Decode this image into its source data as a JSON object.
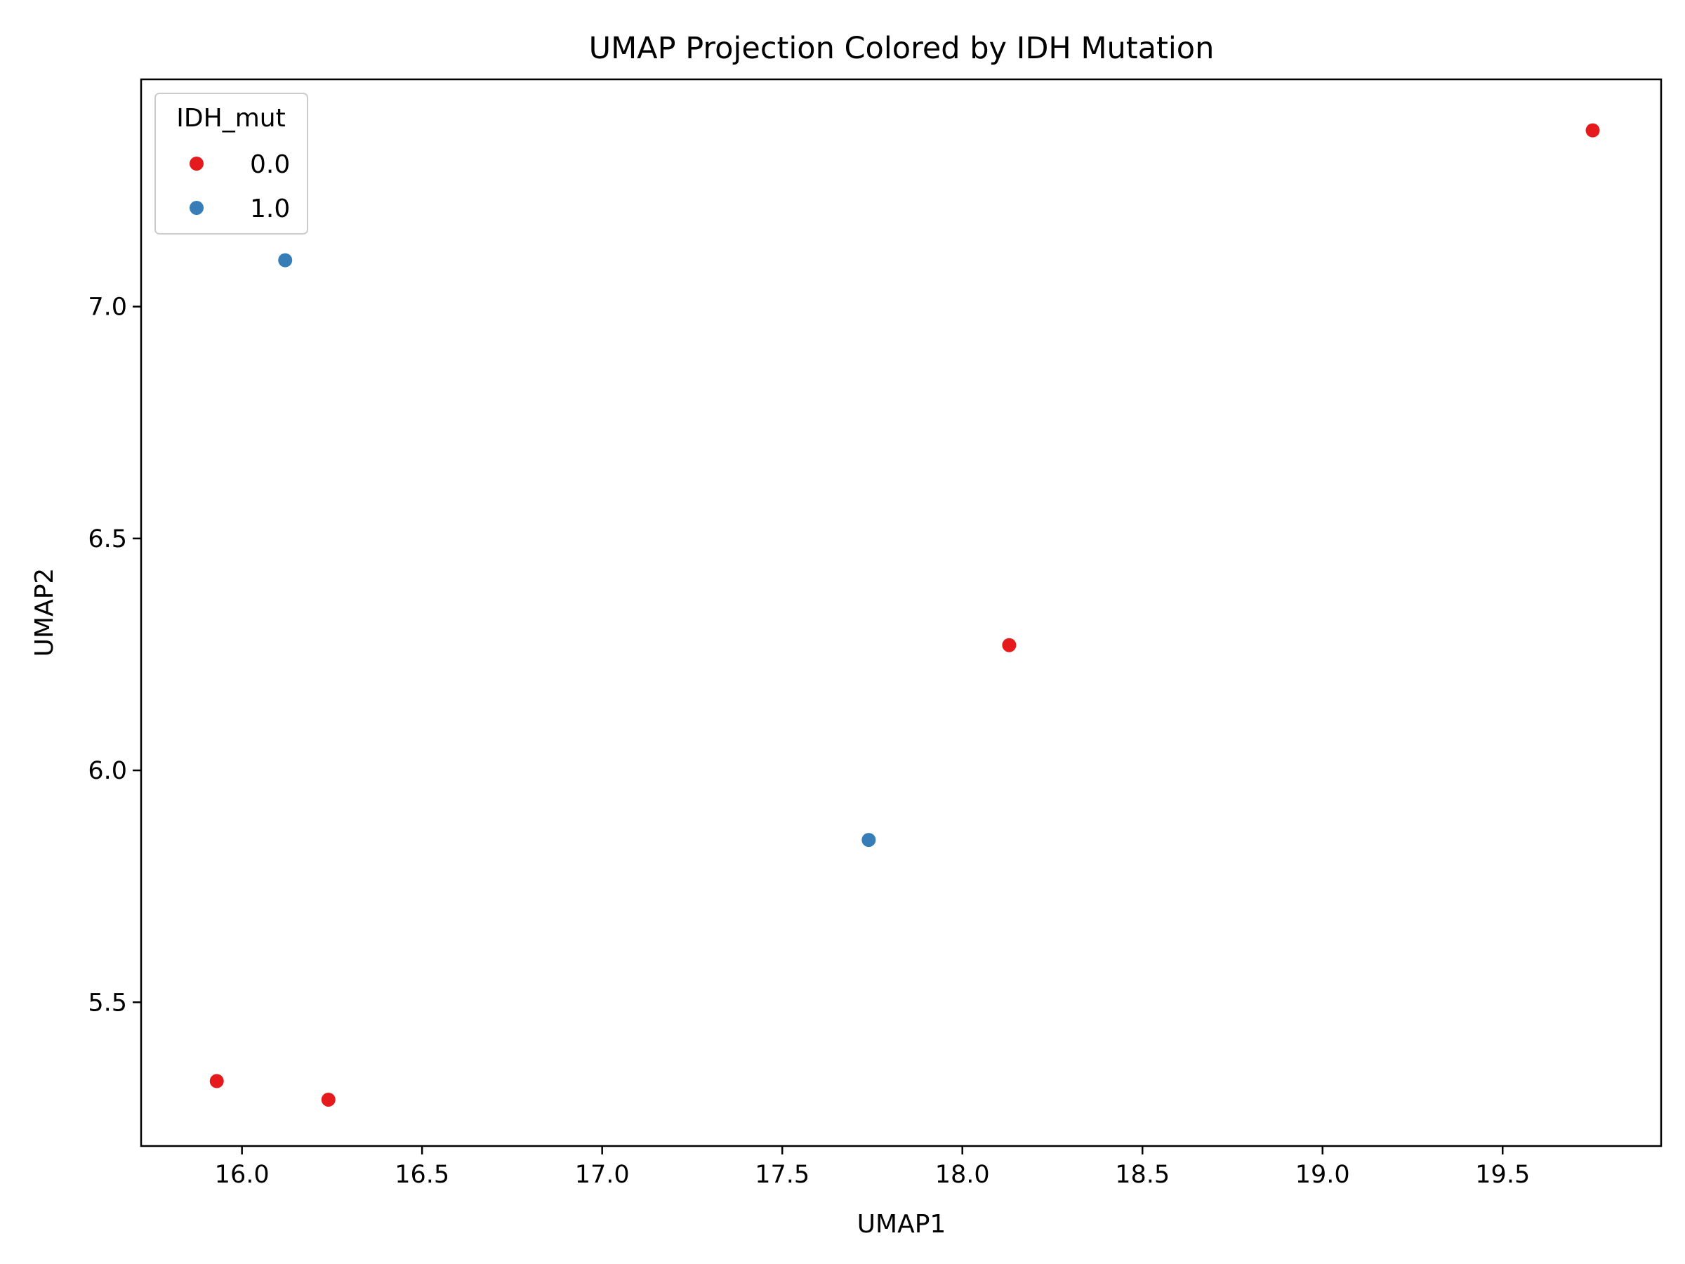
{
  "chart_data": {
    "type": "scatter",
    "title": "UMAP Projection Colored by IDH Mutation",
    "xlabel": "UMAP1",
    "ylabel": "UMAP2",
    "xlim": [
      15.72,
      19.94
    ],
    "ylim": [
      5.19,
      7.49
    ],
    "xticks": [
      "16.0",
      "16.5",
      "17.0",
      "17.5",
      "18.0",
      "18.5",
      "19.0",
      "19.5"
    ],
    "yticks": [
      "5.5",
      "6.0",
      "6.5",
      "7.0"
    ],
    "grid": false,
    "legend": {
      "title": "IDH_mut",
      "placement": "top-left",
      "entries": [
        "0.0",
        "1.0"
      ]
    },
    "series": [
      {
        "name": "0.0",
        "color": "#e41a1c",
        "points": [
          {
            "x": 15.93,
            "y": 5.33
          },
          {
            "x": 16.24,
            "y": 5.29
          },
          {
            "x": 18.13,
            "y": 6.27
          },
          {
            "x": 19.75,
            "y": 7.38
          }
        ]
      },
      {
        "name": "1.0",
        "color": "#377eb8",
        "points": [
          {
            "x": 16.12,
            "y": 7.1
          },
          {
            "x": 17.74,
            "y": 5.85
          }
        ]
      }
    ]
  }
}
